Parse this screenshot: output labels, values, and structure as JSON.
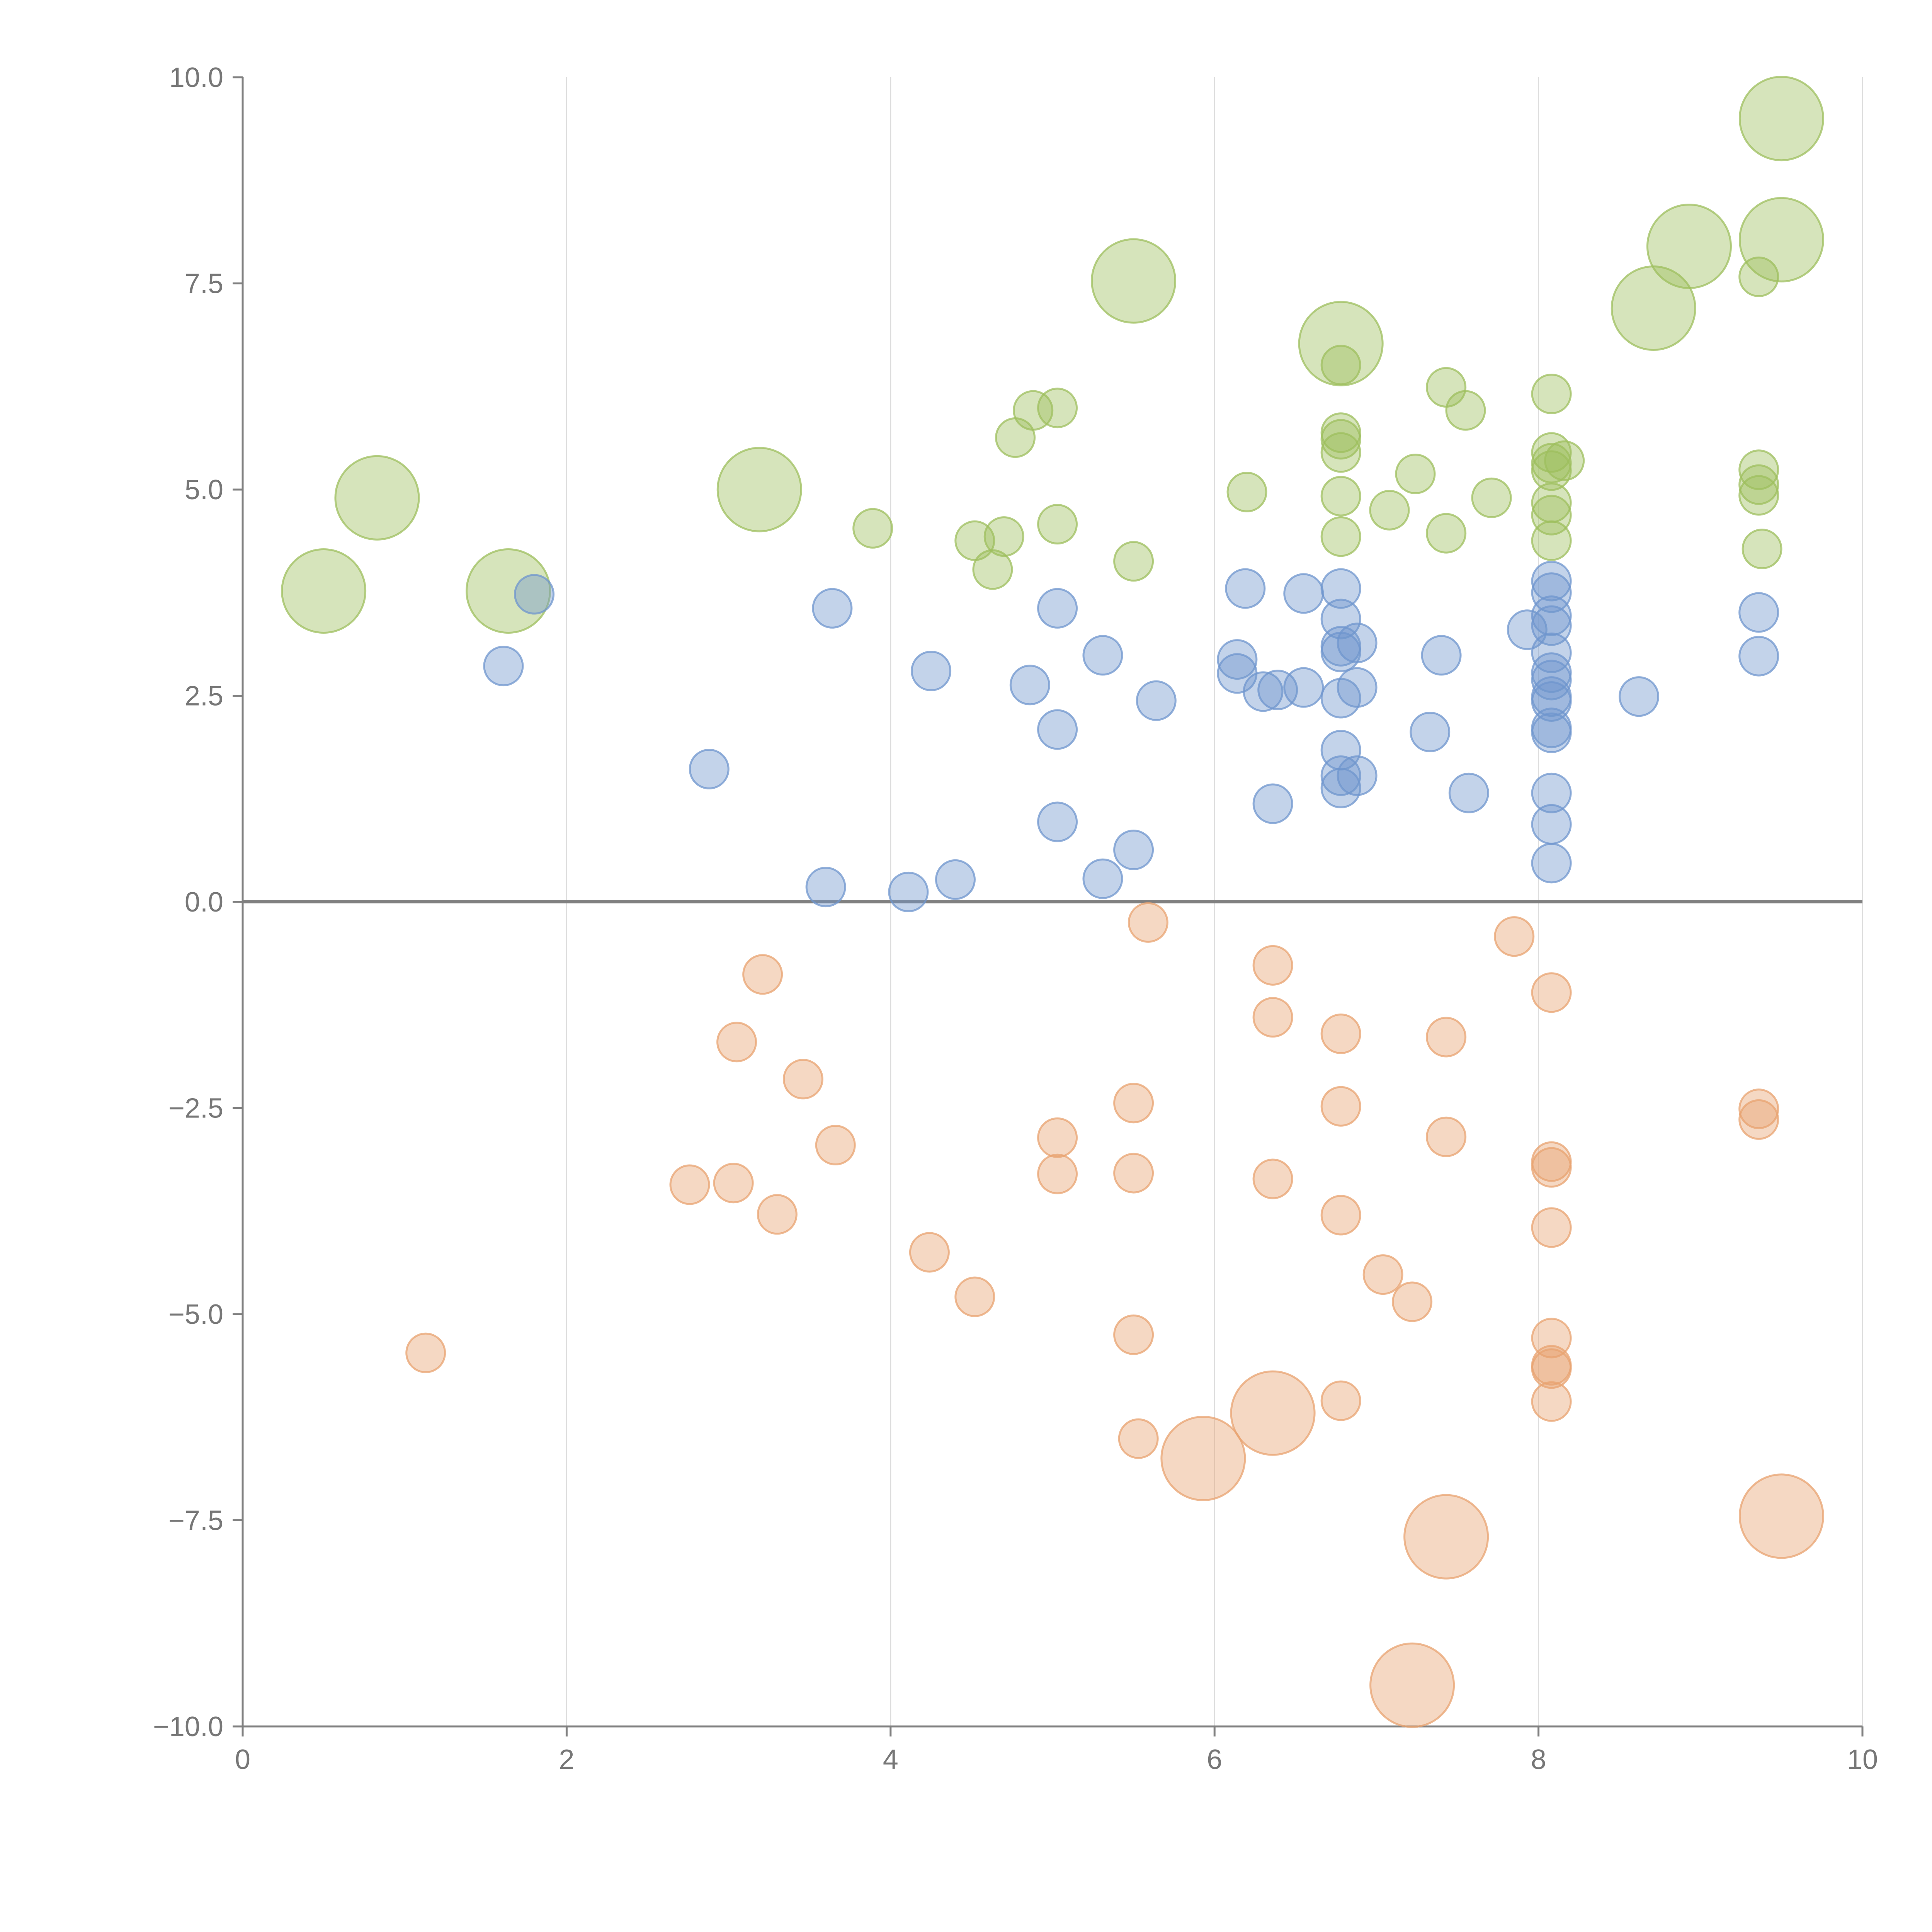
{
  "chart_data": {
    "type": "scatter",
    "title": "",
    "xlabel": "",
    "ylabel": "",
    "xlim": [
      0,
      10
    ],
    "ylim": [
      -10,
      10
    ],
    "grid": "vertical",
    "x_ticks": [
      "0",
      "2",
      "4",
      "6",
      "8",
      "10"
    ],
    "y_ticks": [
      "−10.0",
      "−7.5",
      "−5.0",
      "−2.5",
      "0.0",
      "2.5",
      "5.0",
      "7.5",
      "10.0"
    ],
    "x_tick_values": [
      0,
      2,
      4,
      6,
      8,
      10
    ],
    "y_tick_values": [
      -10,
      -7.5,
      -5,
      -2.5,
      0,
      2.5,
      5,
      7.5,
      10
    ],
    "baseline": 0,
    "series": [
      {
        "name": "green",
        "color": "#9ebf5d",
        "points": [
          {
            "x": 0.5,
            "y": 3.77,
            "size": 3
          },
          {
            "x": 0.83,
            "y": 4.9,
            "size": 3
          },
          {
            "x": 1.64,
            "y": 3.77,
            "size": 3
          },
          {
            "x": 3.19,
            "y": 5.0,
            "size": 3
          },
          {
            "x": 3.89,
            "y": 4.53,
            "size": 1
          },
          {
            "x": 4.52,
            "y": 4.38,
            "size": 1
          },
          {
            "x": 4.63,
            "y": 4.03,
            "size": 1
          },
          {
            "x": 4.7,
            "y": 4.43,
            "size": 1
          },
          {
            "x": 4.77,
            "y": 5.63,
            "size": 1
          },
          {
            "x": 4.88,
            "y": 5.96,
            "size": 1
          },
          {
            "x": 5.03,
            "y": 5.99,
            "size": 1
          },
          {
            "x": 5.03,
            "y": 4.58,
            "size": 1
          },
          {
            "x": 5.5,
            "y": 7.53,
            "size": 3
          },
          {
            "x": 5.5,
            "y": 4.13,
            "size": 1
          },
          {
            "x": 6.2,
            "y": 4.97,
            "size": 1
          },
          {
            "x": 6.78,
            "y": 6.77,
            "size": 3
          },
          {
            "x": 6.78,
            "y": 6.51,
            "size": 1
          },
          {
            "x": 6.78,
            "y": 5.69,
            "size": 1
          },
          {
            "x": 6.78,
            "y": 5.61,
            "size": 1
          },
          {
            "x": 6.78,
            "y": 5.45,
            "size": 1
          },
          {
            "x": 6.78,
            "y": 4.92,
            "size": 1
          },
          {
            "x": 6.78,
            "y": 4.43,
            "size": 1
          },
          {
            "x": 7.08,
            "y": 4.75,
            "size": 1
          },
          {
            "x": 7.24,
            "y": 5.19,
            "size": 1
          },
          {
            "x": 7.43,
            "y": 6.24,
            "size": 1
          },
          {
            "x": 7.43,
            "y": 4.47,
            "size": 1
          },
          {
            "x": 7.55,
            "y": 5.96,
            "size": 1
          },
          {
            "x": 7.71,
            "y": 4.9,
            "size": 1
          },
          {
            "x": 8.08,
            "y": 6.16,
            "size": 1
          },
          {
            "x": 8.08,
            "y": 5.45,
            "size": 1
          },
          {
            "x": 8.08,
            "y": 5.32,
            "size": 1
          },
          {
            "x": 8.08,
            "y": 5.23,
            "size": 1
          },
          {
            "x": 8.08,
            "y": 4.84,
            "size": 1
          },
          {
            "x": 8.08,
            "y": 4.69,
            "size": 1
          },
          {
            "x": 8.08,
            "y": 4.38,
            "size": 1
          },
          {
            "x": 8.16,
            "y": 5.35,
            "size": 1
          },
          {
            "x": 8.71,
            "y": 7.2,
            "size": 3
          },
          {
            "x": 8.93,
            "y": 7.95,
            "size": 3
          },
          {
            "x": 9.36,
            "y": 7.58,
            "size": 1
          },
          {
            "x": 9.36,
            "y": 5.24,
            "size": 1
          },
          {
            "x": 9.36,
            "y": 5.06,
            "size": 1
          },
          {
            "x": 9.36,
            "y": 4.93,
            "size": 1
          },
          {
            "x": 9.38,
            "y": 4.28,
            "size": 1
          },
          {
            "x": 9.5,
            "y": 9.5,
            "size": 3
          },
          {
            "x": 9.5,
            "y": 8.03,
            "size": 3
          }
        ]
      },
      {
        "name": "blue",
        "color": "#6f95cd",
        "points": [
          {
            "x": 1.61,
            "y": 2.86,
            "size": 1
          },
          {
            "x": 1.8,
            "y": 3.73,
            "size": 1
          },
          {
            "x": 2.88,
            "y": 1.61,
            "size": 1
          },
          {
            "x": 3.6,
            "y": 0.18,
            "size": 1
          },
          {
            "x": 3.64,
            "y": 3.56,
            "size": 1
          },
          {
            "x": 4.11,
            "y": 0.12,
            "size": 1
          },
          {
            "x": 4.25,
            "y": 2.8,
            "size": 1
          },
          {
            "x": 4.4,
            "y": 0.27,
            "size": 1
          },
          {
            "x": 4.86,
            "y": 2.63,
            "size": 1
          },
          {
            "x": 5.03,
            "y": 3.56,
            "size": 1
          },
          {
            "x": 5.03,
            "y": 2.09,
            "size": 1
          },
          {
            "x": 5.03,
            "y": 0.97,
            "size": 1
          },
          {
            "x": 5.31,
            "y": 2.99,
            "size": 1
          },
          {
            "x": 5.31,
            "y": 0.28,
            "size": 1
          },
          {
            "x": 5.5,
            "y": 0.63,
            "size": 1
          },
          {
            "x": 5.64,
            "y": 2.44,
            "size": 1
          },
          {
            "x": 6.14,
            "y": 2.94,
            "size": 1
          },
          {
            "x": 6.14,
            "y": 2.77,
            "size": 1
          },
          {
            "x": 6.19,
            "y": 3.8,
            "size": 1
          },
          {
            "x": 6.3,
            "y": 2.55,
            "size": 1
          },
          {
            "x": 6.36,
            "y": 1.19,
            "size": 1
          },
          {
            "x": 6.39,
            "y": 2.57,
            "size": 1
          },
          {
            "x": 6.55,
            "y": 3.74,
            "size": 1
          },
          {
            "x": 6.55,
            "y": 2.6,
            "size": 1
          },
          {
            "x": 6.78,
            "y": 3.8,
            "size": 1
          },
          {
            "x": 6.78,
            "y": 3.43,
            "size": 1
          },
          {
            "x": 6.78,
            "y": 3.1,
            "size": 1
          },
          {
            "x": 6.78,
            "y": 3.03,
            "size": 1
          },
          {
            "x": 6.78,
            "y": 2.47,
            "size": 1
          },
          {
            "x": 6.78,
            "y": 1.84,
            "size": 1
          },
          {
            "x": 6.78,
            "y": 1.53,
            "size": 1
          },
          {
            "x": 6.78,
            "y": 1.38,
            "size": 1
          },
          {
            "x": 6.88,
            "y": 3.14,
            "size": 1
          },
          {
            "x": 6.88,
            "y": 2.6,
            "size": 1
          },
          {
            "x": 6.88,
            "y": 1.53,
            "size": 1
          },
          {
            "x": 7.33,
            "y": 2.06,
            "size": 1
          },
          {
            "x": 7.4,
            "y": 2.99,
            "size": 1
          },
          {
            "x": 7.57,
            "y": 1.32,
            "size": 1
          },
          {
            "x": 7.93,
            "y": 3.3,
            "size": 1
          },
          {
            "x": 8.08,
            "y": 3.89,
            "size": 1
          },
          {
            "x": 8.08,
            "y": 3.75,
            "size": 1
          },
          {
            "x": 8.08,
            "y": 3.47,
            "size": 1
          },
          {
            "x": 8.08,
            "y": 3.35,
            "size": 1
          },
          {
            "x": 8.08,
            "y": 3.02,
            "size": 1
          },
          {
            "x": 8.08,
            "y": 2.78,
            "size": 1
          },
          {
            "x": 8.08,
            "y": 2.69,
            "size": 1
          },
          {
            "x": 8.08,
            "y": 2.49,
            "size": 1
          },
          {
            "x": 8.08,
            "y": 2.43,
            "size": 1
          },
          {
            "x": 8.08,
            "y": 2.11,
            "size": 1
          },
          {
            "x": 8.08,
            "y": 2.05,
            "size": 1
          },
          {
            "x": 8.08,
            "y": 1.32,
            "size": 1
          },
          {
            "x": 8.08,
            "y": 0.94,
            "size": 1
          },
          {
            "x": 8.08,
            "y": 0.47,
            "size": 1
          },
          {
            "x": 8.62,
            "y": 2.49,
            "size": 1
          },
          {
            "x": 9.36,
            "y": 3.51,
            "size": 1
          },
          {
            "x": 9.36,
            "y": 2.98,
            "size": 1
          }
        ]
      },
      {
        "name": "orange",
        "color": "#e8a370",
        "points": [
          {
            "x": 1.13,
            "y": -5.47,
            "size": 1
          },
          {
            "x": 2.76,
            "y": -3.43,
            "size": 1
          },
          {
            "x": 3.03,
            "y": -3.41,
            "size": 1
          },
          {
            "x": 3.05,
            "y": -1.7,
            "size": 1
          },
          {
            "x": 3.21,
            "y": -0.88,
            "size": 1
          },
          {
            "x": 3.3,
            "y": -3.79,
            "size": 1
          },
          {
            "x": 3.46,
            "y": -2.15,
            "size": 1
          },
          {
            "x": 3.66,
            "y": -2.95,
            "size": 1
          },
          {
            "x": 4.24,
            "y": -4.25,
            "size": 1
          },
          {
            "x": 4.52,
            "y": -4.79,
            "size": 1
          },
          {
            "x": 5.03,
            "y": -2.86,
            "size": 1
          },
          {
            "x": 5.03,
            "y": -3.3,
            "size": 1
          },
          {
            "x": 5.5,
            "y": -2.44,
            "size": 1
          },
          {
            "x": 5.5,
            "y": -3.29,
            "size": 1
          },
          {
            "x": 5.5,
            "y": -5.25,
            "size": 1
          },
          {
            "x": 5.53,
            "y": -6.51,
            "size": 1
          },
          {
            "x": 5.59,
            "y": -0.25,
            "size": 1
          },
          {
            "x": 5.93,
            "y": -6.75,
            "size": 3
          },
          {
            "x": 6.36,
            "y": -0.77,
            "size": 1
          },
          {
            "x": 6.36,
            "y": -1.4,
            "size": 1
          },
          {
            "x": 6.36,
            "y": -3.36,
            "size": 1
          },
          {
            "x": 6.36,
            "y": -6.2,
            "size": 3
          },
          {
            "x": 6.78,
            "y": -1.6,
            "size": 1
          },
          {
            "x": 6.78,
            "y": -2.48,
            "size": 1
          },
          {
            "x": 6.78,
            "y": -3.8,
            "size": 1
          },
          {
            "x": 6.78,
            "y": -6.05,
            "size": 1
          },
          {
            "x": 7.04,
            "y": -4.52,
            "size": 1
          },
          {
            "x": 7.22,
            "y": -4.85,
            "size": 1
          },
          {
            "x": 7.22,
            "y": -9.5,
            "size": 3
          },
          {
            "x": 7.43,
            "y": -1.64,
            "size": 1
          },
          {
            "x": 7.43,
            "y": -2.85,
            "size": 1
          },
          {
            "x": 7.43,
            "y": -7.7,
            "size": 3
          },
          {
            "x": 7.85,
            "y": -0.42,
            "size": 1
          },
          {
            "x": 8.08,
            "y": -1.1,
            "size": 1
          },
          {
            "x": 8.08,
            "y": -3.15,
            "size": 1
          },
          {
            "x": 8.08,
            "y": -3.22,
            "size": 1
          },
          {
            "x": 8.08,
            "y": -3.95,
            "size": 1
          },
          {
            "x": 8.08,
            "y": -5.29,
            "size": 1
          },
          {
            "x": 8.08,
            "y": -5.62,
            "size": 1
          },
          {
            "x": 8.08,
            "y": -5.66,
            "size": 1
          },
          {
            "x": 8.08,
            "y": -6.06,
            "size": 1
          },
          {
            "x": 9.36,
            "y": -2.51,
            "size": 1
          },
          {
            "x": 9.36,
            "y": -2.64,
            "size": 1
          },
          {
            "x": 9.5,
            "y": -7.45,
            "size": 3
          }
        ]
      }
    ]
  }
}
